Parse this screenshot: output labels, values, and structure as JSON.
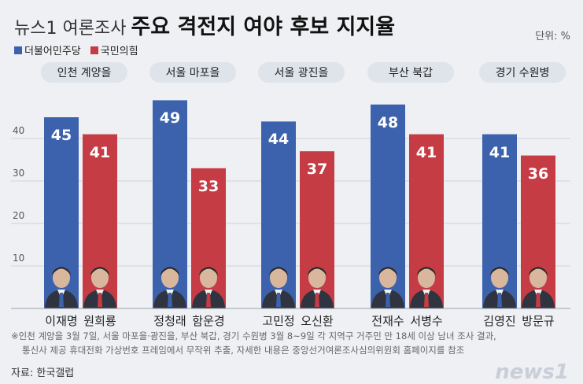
{
  "header": {
    "title_prefix": "뉴스1 여론조사",
    "title_main": "주요 격전지 여야 후보 지지율",
    "unit": "단위: %"
  },
  "legend": [
    {
      "name": "더불어민주당",
      "color": "#3d62ad"
    },
    {
      "name": "국민의힘",
      "color": "#c63c45"
    }
  ],
  "chart_data": {
    "type": "bar",
    "title": "주요 격전지 여야 후보 지지율",
    "ylim": [
      0,
      50
    ],
    "y_ticks": [
      10,
      20,
      30,
      40
    ],
    "grid": true,
    "legend_position": "top-left",
    "categories": [
      "인천 계양을",
      "서울 마포을",
      "서울 광진을",
      "부산 북갑",
      "경기 수원병"
    ],
    "series": [
      {
        "name": "더불어민주당",
        "color": "#3d62ad",
        "values": [
          45,
          49,
          44,
          48,
          41
        ],
        "candidates": [
          "이재명",
          "정청래",
          "고민정",
          "전재수",
          "김영진"
        ]
      },
      {
        "name": "국민의힘",
        "color": "#c63c45",
        "values": [
          41,
          33,
          37,
          41,
          36
        ],
        "candidates": [
          "원희룡",
          "함운경",
          "오신환",
          "서병수",
          "방문규"
        ]
      }
    ]
  },
  "footnote": [
    "※인천 계양을 3월 7일, 서울 마포을·광진을, 부산 북갑, 경기 수원병 3월 8~9일 각 지역구 거주민 만 18세 이상 남녀 조사 결과,",
    "통신사 제공 휴대전화 가상번호 프레임에서 무작위 추출, 자세한 내용은 중앙선거여론조사심의위원회 홈페이지를 참조"
  ],
  "source": "자료: 한국갤럽",
  "logo": "news1"
}
